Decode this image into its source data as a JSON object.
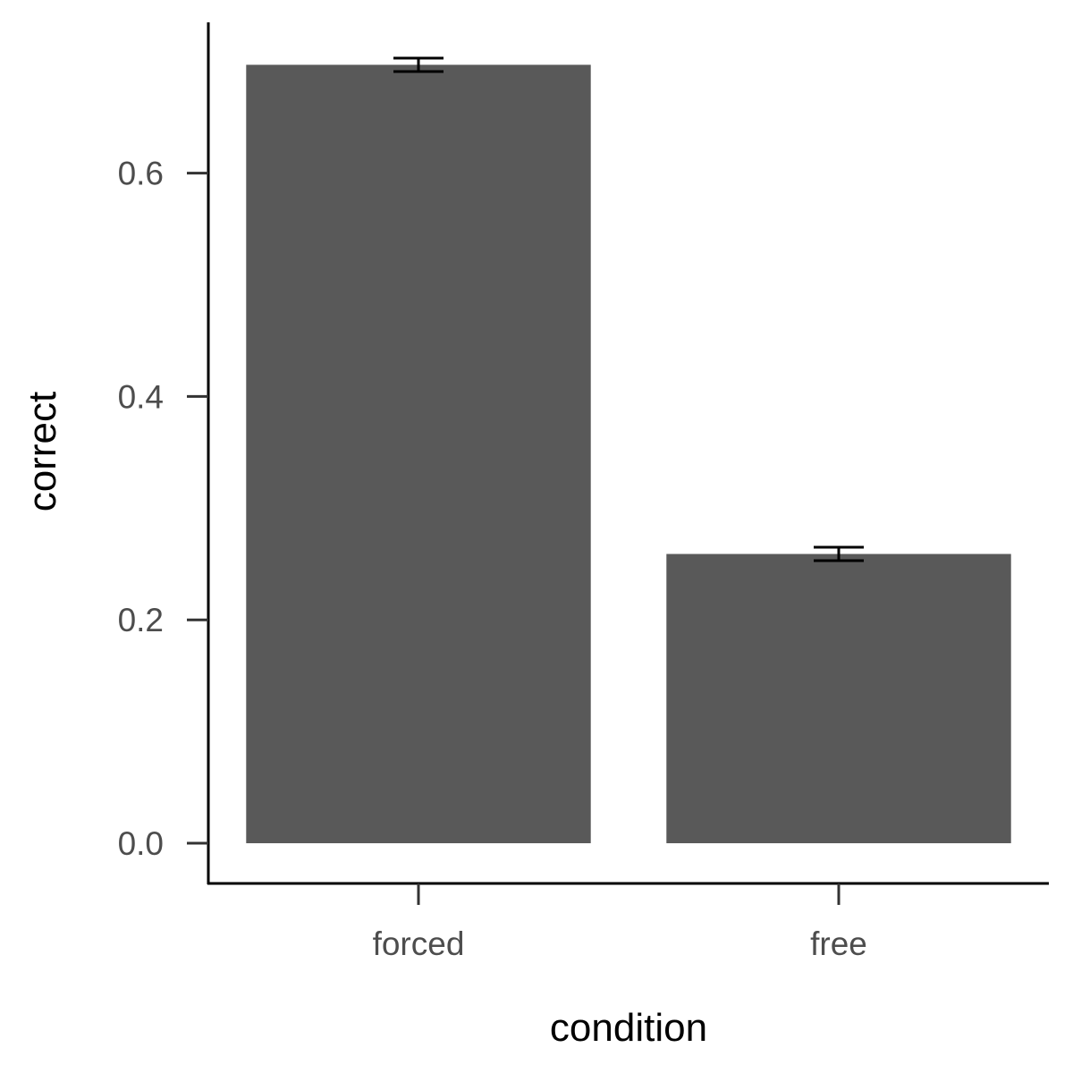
{
  "chart_data": {
    "type": "bar",
    "categories": [
      "forced",
      "free"
    ],
    "values": [
      0.697,
      0.259
    ],
    "error": [
      {
        "low": 0.691,
        "high": 0.703
      },
      {
        "low": 0.253,
        "high": 0.265
      }
    ],
    "xlabel": "condition",
    "ylabel": "correct",
    "ylim": [
      -0.036,
      0.735
    ],
    "yticks": [
      0.0,
      0.2,
      0.4,
      0.6
    ],
    "ytick_labels": [
      "0.0",
      "0.2",
      "0.4",
      "0.6"
    ],
    "grid": false,
    "legend": "none",
    "colors": {
      "bar": "#595959",
      "axis": "#000000",
      "tick": "#333333",
      "tick_label": "#4d4d4d"
    }
  }
}
